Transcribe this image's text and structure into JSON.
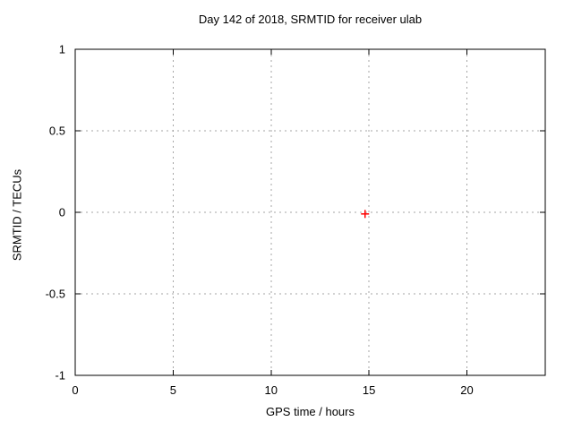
{
  "window": {
    "background": "#ffffff"
  },
  "chart_data": {
    "type": "scatter",
    "title": "Day 142 of 2018, SRMTID for receiver ulab",
    "xlabel": "GPS time / hours",
    "ylabel": "SRMTID / TECUs",
    "xlim": [
      0,
      24
    ],
    "ylim": [
      -1,
      1
    ],
    "xticks": [
      {
        "value": 0,
        "label": "0"
      },
      {
        "value": 5,
        "label": "5"
      },
      {
        "value": 10,
        "label": "10"
      },
      {
        "value": 15,
        "label": "15"
      },
      {
        "value": 20,
        "label": "20"
      }
    ],
    "yticks": [
      {
        "value": -1,
        "label": "-1"
      },
      {
        "value": -0.5,
        "label": "-0.5"
      },
      {
        "value": 0,
        "label": "0"
      },
      {
        "value": 0.5,
        "label": "0.5"
      },
      {
        "value": 1,
        "label": "1"
      }
    ],
    "grid": true,
    "legend": "none",
    "series": [
      {
        "name": "SRMTID",
        "marker": "plus",
        "color": "#ff0000",
        "points": [
          {
            "x": 14.8,
            "y": -0.01
          }
        ]
      }
    ],
    "colors": {
      "border": "#000000",
      "grid": "#a6a6a6",
      "text": "#000000",
      "background": "#ffffff"
    }
  }
}
